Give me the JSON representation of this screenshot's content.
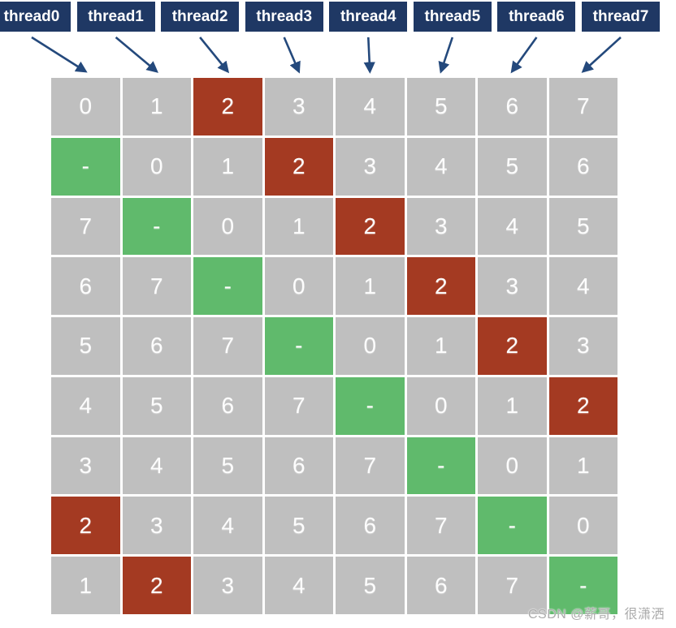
{
  "colors": {
    "navy": "#1F3864",
    "arrow": "#24497C",
    "gray_cell": "#BFBFBF",
    "red_cell": "#A43A22",
    "green_cell": "#60BA6C",
    "cell_text": "#FDFDFD",
    "watermark": "#ABABAB"
  },
  "threads": [
    {
      "label": "thread0"
    },
    {
      "label": "thread1"
    },
    {
      "label": "thread2"
    },
    {
      "label": "thread3"
    },
    {
      "label": "thread4"
    },
    {
      "label": "thread5"
    },
    {
      "label": "thread6"
    },
    {
      "label": "thread7"
    }
  ],
  "grid": {
    "red_value": "2",
    "green_value": "-",
    "rows": [
      [
        "0",
        "1",
        "2",
        "3",
        "4",
        "5",
        "6",
        "7"
      ],
      [
        "-",
        "0",
        "1",
        "2",
        "3",
        "4",
        "5",
        "6"
      ],
      [
        "7",
        "-",
        "0",
        "1",
        "2",
        "3",
        "4",
        "5"
      ],
      [
        "6",
        "7",
        "-",
        "0",
        "1",
        "2",
        "3",
        "4"
      ],
      [
        "5",
        "6",
        "7",
        "-",
        "0",
        "1",
        "2",
        "3"
      ],
      [
        "4",
        "5",
        "6",
        "7",
        "-",
        "0",
        "1",
        "2"
      ],
      [
        "3",
        "4",
        "5",
        "6",
        "7",
        "-",
        "0",
        "1"
      ],
      [
        "2",
        "3",
        "4",
        "5",
        "6",
        "7",
        "-",
        "0"
      ],
      [
        "1",
        "2",
        "3",
        "4",
        "5",
        "6",
        "7",
        "-"
      ]
    ]
  },
  "watermark": "CSDN @薪哥，很潇洒"
}
